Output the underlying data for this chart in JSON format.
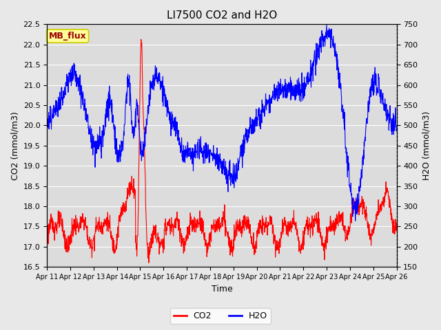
{
  "title": "LI7500 CO2 and H2O",
  "xlabel": "Time",
  "ylabel_left": "CO2 (mmol/m3)",
  "ylabel_right": "H2O (mmol/m3)",
  "ylim_left": [
    16.5,
    22.5
  ],
  "ylim_right": [
    150,
    750
  ],
  "xtick_labels": [
    "Apr 11",
    "Apr 12",
    "Apr 13",
    "Apr 14",
    "Apr 15",
    "Apr 16",
    "Apr 17",
    "Apr 18",
    "Apr 19",
    "Apr 20",
    "Apr 21",
    "Apr 22",
    "Apr 23",
    "Apr 24",
    "Apr 25",
    "Apr 26"
  ],
  "co2_color": "#FF0000",
  "h2o_color": "#0000FF",
  "background_color": "#E8E8E8",
  "plot_bg_color": "#DCDCDC",
  "grid_color": "#FFFFFF",
  "title_fontsize": 11,
  "axis_fontsize": 9,
  "tick_fontsize": 8,
  "legend_label_co2": "CO2",
  "legend_label_h2o": "H2O",
  "annotation_text": "MB_flux",
  "annotation_bg": "#FFFF99",
  "annotation_border": "#CCCC00",
  "annotation_text_color": "#990000"
}
